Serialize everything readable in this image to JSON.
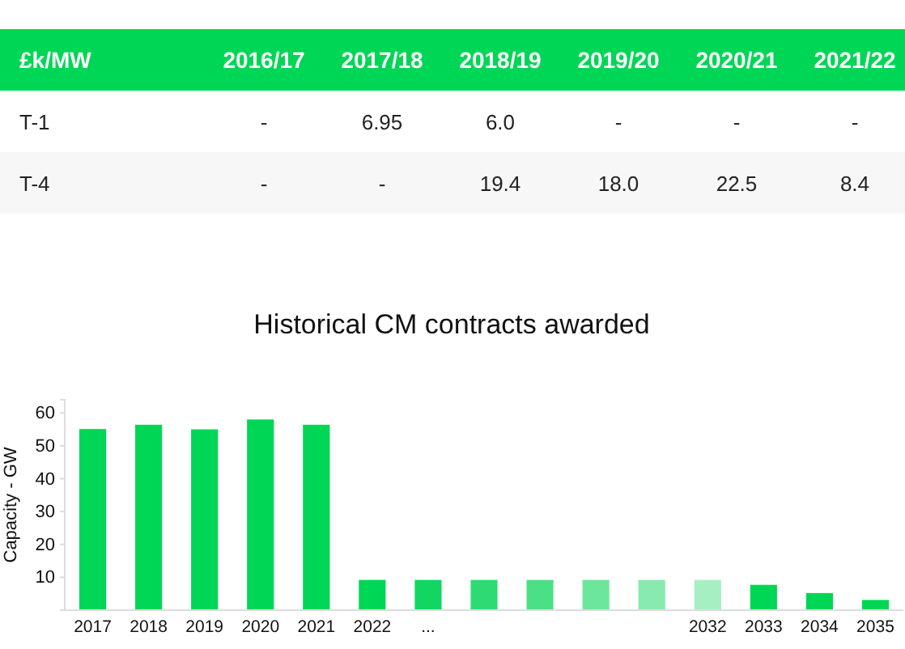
{
  "chart_data": [
    {
      "type": "other",
      "ylabel": "£k/MW",
      "categories": [
        "2016/17",
        "2017/18",
        "2018/19",
        "2019/20",
        "2020/21",
        "2021/22"
      ],
      "y_categories": [
        "T-1",
        "T-4"
      ],
      "cell_labels": [
        [
          "-",
          "6.95",
          "6.0",
          "-",
          "-",
          "-"
        ],
        [
          "-",
          "-",
          "19.4",
          "18.0",
          "22.5",
          "8.4"
        ]
      ],
      "color": "#00d655"
    },
    {
      "type": "bar",
      "title": "Historical CM contracts awarded",
      "ylabel": "Capacity - GW",
      "categories": [
        "2017",
        "2018",
        "2019",
        "2020",
        "2021",
        "2022",
        "...",
        null,
        null,
        null,
        null,
        "2032",
        "2033",
        "2034",
        "2035"
      ],
      "values": [
        55.1,
        56.4,
        55.0,
        58.0,
        56.4,
        9.2,
        9.2,
        9.2,
        9.2,
        9.2,
        9.2,
        9.2,
        7.7,
        5.2,
        3.1
      ],
      "colors": [
        "#00d655",
        "#00d655",
        "#00d655",
        "#00d655",
        "#00d655",
        "#00d655",
        "#12d662",
        "#2edb73",
        "#4ce086",
        "#6be69b",
        "#88eaae",
        "#a6efc2",
        "#00d655",
        "#00d655",
        "#00d655"
      ],
      "ylim": [
        0,
        64
      ],
      "yticks": [
        10,
        20,
        30,
        40,
        50,
        60
      ],
      "grid": false
    }
  ]
}
